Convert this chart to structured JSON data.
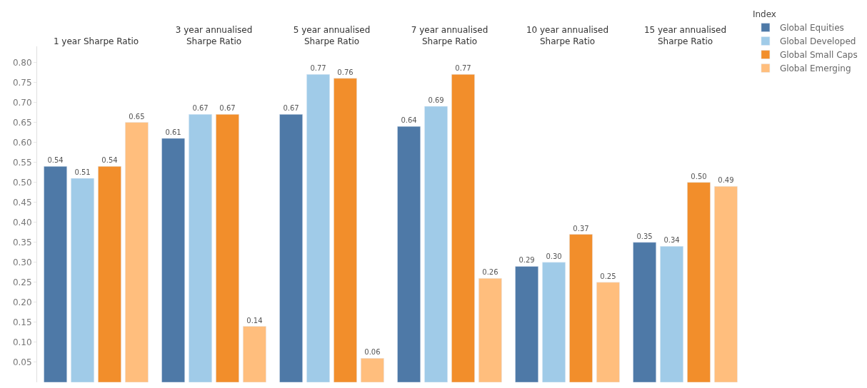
{
  "chart_data": {
    "type": "bar",
    "categories": [
      "1 year Sharpe Ratio",
      "3 year annualised Sharpe Ratio",
      "5 year annualised Sharpe Ratio",
      "7 year annualised Sharpe Ratio",
      "10 year annualised Sharpe Ratio",
      "15 year annualised Sharpe Ratio"
    ],
    "ylim": [
      0,
      0.84
    ],
    "legend": "right",
    "legend_title": "Index",
    "yticks": [
      0.05,
      {
        "value": 0.1,
        "label": "0.10"
      },
      0.15,
      {
        "value": 0.2,
        "label": "0.20"
      },
      0.25,
      {
        "value": 0.3,
        "label": "0.30"
      },
      0.35,
      {
        "value": 0.4,
        "label": "0.40"
      },
      0.45,
      {
        "value": 0.5,
        "label": "0.50"
      },
      0.55,
      {
        "value": 0.6,
        "label": "0.60"
      },
      0.65,
      {
        "value": 0.7,
        "label": "0.70"
      },
      0.75,
      {
        "value": 0.8,
        "label": "0.80"
      }
    ],
    "series": [
      {
        "name": "Global Equities",
        "color": "#4e79a7",
        "values": [
          0.54,
          0.61,
          0.67,
          0.64,
          0.29,
          0.35
        ],
        "value_labels": [
          "0.54",
          "0.61",
          "0.67",
          "0.64",
          "0.29",
          "0.35"
        ]
      },
      {
        "name": "Global Developed",
        "color": "#a0cbe8",
        "values": [
          0.51,
          0.67,
          0.77,
          0.69,
          0.3,
          0.34
        ],
        "value_labels": [
          "0.51",
          "0.67",
          "0.77",
          "0.69",
          "0.30",
          "0.34"
        ]
      },
      {
        "name": "Global Small Caps",
        "color": "#f28e2b",
        "values": [
          0.54,
          0.67,
          0.76,
          0.77,
          0.37,
          0.5
        ],
        "value_labels": [
          "0.54",
          "0.67",
          "0.76",
          "0.77",
          "0.37",
          "0.50"
        ]
      },
      {
        "name": "Global Emerging",
        "color": "#ffbe7d",
        "values": [
          0.65,
          0.14,
          0.06,
          0.26,
          0.25,
          0.49
        ],
        "value_labels": [
          "0.65",
          "0.14",
          "0.06",
          "0.26",
          "0.25",
          "0.49"
        ]
      }
    ]
  }
}
